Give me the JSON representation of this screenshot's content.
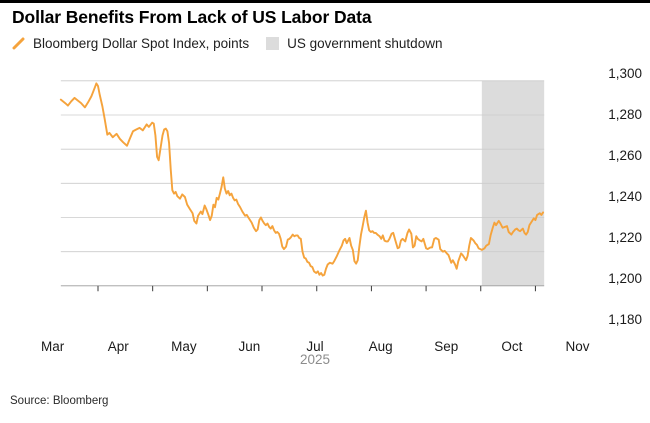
{
  "header": {
    "title": "Dollar Benefits From Lack of US Labor Data"
  },
  "legend": {
    "items": [
      {
        "label": "Bloomberg Dollar Spot Index, points",
        "swatch": "orange-slash",
        "color": "#F5A33C"
      },
      {
        "label": "US government shutdown",
        "swatch": "gray-square",
        "color": "#DCDCDC"
      }
    ]
  },
  "footer": {
    "source": "Source: Bloomberg"
  },
  "chart_data": {
    "type": "line",
    "title": "Dollar Benefits From Lack of US Labor Data",
    "series_name": "Bloomberg Dollar Spot Index, points",
    "x_unit": "fractional month of 2025 (3 = Mar 1, 11 = Nov 1)",
    "x_range": [
      2.32,
      11.16
    ],
    "y_range": [
      1180,
      1300
    ],
    "x_axis_year": "2025",
    "grid": true,
    "legend_position": "top",
    "line_color": "#F5A33C",
    "band_color": "#DCDCDC",
    "grid_color": "#CBCBCB",
    "axis_color": "#9B9B9B",
    "tick_color": "#3A3A3A",
    "x_ticks": [
      {
        "m": 3,
        "label": "Mar"
      },
      {
        "m": 4,
        "label": "Apr"
      },
      {
        "m": 5,
        "label": "May"
      },
      {
        "m": 6,
        "label": "Jun"
      },
      {
        "m": 7,
        "label": "Jul"
      },
      {
        "m": 8,
        "label": "Aug"
      },
      {
        "m": 9,
        "label": "Sep"
      },
      {
        "m": 10,
        "label": "Oct"
      },
      {
        "m": 11,
        "label": "Nov"
      }
    ],
    "y_ticks": [
      {
        "value": 1300,
        "label": "1,300"
      },
      {
        "value": 1280,
        "label": "1,280"
      },
      {
        "value": 1260,
        "label": "1,260"
      },
      {
        "value": 1240,
        "label": "1,240"
      },
      {
        "value": 1220,
        "label": "1,220"
      },
      {
        "value": 1200,
        "label": "1,200"
      },
      {
        "value": 1180,
        "label": "1,180"
      }
    ],
    "shutdown_band": {
      "label": "US government shutdown",
      "x_start": 10.02,
      "x_end": 11.16
    },
    "points": [
      [
        2.32,
        1289
      ],
      [
        2.4,
        1287
      ],
      [
        2.45,
        1285.5
      ],
      [
        2.51,
        1288
      ],
      [
        2.57,
        1290
      ],
      [
        2.63,
        1288.5
      ],
      [
        2.69,
        1287
      ],
      [
        2.76,
        1284.5
      ],
      [
        2.82,
        1287.5
      ],
      [
        2.88,
        1291
      ],
      [
        2.94,
        1296
      ],
      [
        2.97,
        1298.5
      ],
      [
        3.0,
        1297
      ],
      [
        3.03,
        1292
      ],
      [
        3.08,
        1285
      ],
      [
        3.12,
        1278
      ],
      [
        3.17,
        1268.5
      ],
      [
        3.21,
        1269.5
      ],
      [
        3.27,
        1267
      ],
      [
        3.34,
        1269
      ],
      [
        3.4,
        1266
      ],
      [
        3.46,
        1264
      ],
      [
        3.53,
        1262
      ],
      [
        3.58,
        1266
      ],
      [
        3.64,
        1270.5
      ],
      [
        3.7,
        1271.5
      ],
      [
        3.76,
        1272.5
      ],
      [
        3.82,
        1271
      ],
      [
        3.89,
        1274.5
      ],
      [
        3.93,
        1273
      ],
      [
        3.99,
        1275.5
      ],
      [
        4.02,
        1275
      ],
      [
        4.05,
        1268
      ],
      [
        4.08,
        1255.5
      ],
      [
        4.11,
        1253.5
      ],
      [
        4.15,
        1262
      ],
      [
        4.18,
        1268
      ],
      [
        4.21,
        1271.5
      ],
      [
        4.24,
        1272
      ],
      [
        4.27,
        1270.5
      ],
      [
        4.3,
        1263.5
      ],
      [
        4.33,
        1248
      ],
      [
        4.36,
        1236
      ],
      [
        4.39,
        1234
      ],
      [
        4.42,
        1235
      ],
      [
        4.45,
        1232.5
      ],
      [
        4.5,
        1231
      ],
      [
        4.54,
        1233.5
      ],
      [
        4.59,
        1232
      ],
      [
        4.63,
        1227.5
      ],
      [
        4.68,
        1225
      ],
      [
        4.73,
        1222.5
      ],
      [
        4.76,
        1218
      ],
      [
        4.8,
        1216.5
      ],
      [
        4.83,
        1221
      ],
      [
        4.88,
        1223.5
      ],
      [
        4.91,
        1222
      ],
      [
        4.95,
        1227
      ],
      [
        4.98,
        1225
      ],
      [
        5.02,
        1221.5
      ],
      [
        5.05,
        1218.5
      ],
      [
        5.08,
        1221
      ],
      [
        5.11,
        1227.5
      ],
      [
        5.14,
        1226
      ],
      [
        5.17,
        1231.5
      ],
      [
        5.2,
        1230.5
      ],
      [
        5.23,
        1234
      ],
      [
        5.26,
        1238
      ],
      [
        5.29,
        1243.5
      ],
      [
        5.32,
        1237
      ],
      [
        5.35,
        1234
      ],
      [
        5.38,
        1235.5
      ],
      [
        5.41,
        1233
      ],
      [
        5.44,
        1234
      ],
      [
        5.47,
        1231.5
      ],
      [
        5.5,
        1230
      ],
      [
        5.53,
        1230.5
      ],
      [
        5.56,
        1228
      ],
      [
        5.6,
        1226
      ],
      [
        5.64,
        1223.5
      ],
      [
        5.69,
        1221
      ],
      [
        5.72,
        1221.5
      ],
      [
        5.76,
        1219.5
      ],
      [
        5.81,
        1217
      ],
      [
        5.85,
        1214
      ],
      [
        5.89,
        1212
      ],
      [
        5.92,
        1213
      ],
      [
        5.95,
        1218.5
      ],
      [
        5.98,
        1220
      ],
      [
        6.01,
        1218
      ],
      [
        6.04,
        1216.5
      ],
      [
        6.07,
        1215.5
      ],
      [
        6.1,
        1216.5
      ],
      [
        6.13,
        1214.5
      ],
      [
        6.16,
        1213.5
      ],
      [
        6.19,
        1215
      ],
      [
        6.22,
        1212.5
      ],
      [
        6.25,
        1211
      ],
      [
        6.28,
        1211.5
      ],
      [
        6.31,
        1210.5
      ],
      [
        6.34,
        1207.5
      ],
      [
        6.37,
        1203
      ],
      [
        6.4,
        1201.5
      ],
      [
        6.44,
        1203
      ],
      [
        6.47,
        1207
      ],
      [
        6.5,
        1207.5
      ],
      [
        6.53,
        1208.5
      ],
      [
        6.56,
        1210
      ],
      [
        6.59,
        1209
      ],
      [
        6.62,
        1209.5
      ],
      [
        6.65,
        1209.5
      ],
      [
        6.68,
        1208
      ],
      [
        6.71,
        1207.5
      ],
      [
        6.74,
        1200
      ],
      [
        6.77,
        1196.5
      ],
      [
        6.8,
        1196
      ],
      [
        6.83,
        1194
      ],
      [
        6.86,
        1193.5
      ],
      [
        6.89,
        1191.5
      ],
      [
        6.92,
        1191
      ],
      [
        6.95,
        1188.5
      ],
      [
        6.99,
        1187.5
      ],
      [
        7.02,
        1188.5
      ],
      [
        7.05,
        1186.5
      ],
      [
        7.08,
        1187.5
      ],
      [
        7.11,
        1186
      ],
      [
        7.14,
        1186.5
      ],
      [
        7.17,
        1190
      ],
      [
        7.2,
        1192.5
      ],
      [
        7.24,
        1193.5
      ],
      [
        7.29,
        1193
      ],
      [
        7.32,
        1194.5
      ],
      [
        7.37,
        1197.5
      ],
      [
        7.41,
        1200.5
      ],
      [
        7.46,
        1203.5
      ],
      [
        7.49,
        1206.5
      ],
      [
        7.52,
        1207.5
      ],
      [
        7.55,
        1205
      ],
      [
        7.6,
        1208
      ],
      [
        7.63,
        1203.5
      ],
      [
        7.66,
        1201
      ],
      [
        7.69,
        1194.5
      ],
      [
        7.72,
        1193
      ],
      [
        7.75,
        1195
      ],
      [
        7.78,
        1203
      ],
      [
        7.81,
        1210
      ],
      [
        7.84,
        1215
      ],
      [
        7.87,
        1220
      ],
      [
        7.9,
        1224
      ],
      [
        7.93,
        1217
      ],
      [
        7.96,
        1212.5
      ],
      [
        7.99,
        1211.5
      ],
      [
        8.02,
        1212
      ],
      [
        8.05,
        1211
      ],
      [
        8.08,
        1211
      ],
      [
        8.11,
        1210
      ],
      [
        8.15,
        1209
      ],
      [
        8.18,
        1207.5
      ],
      [
        8.21,
        1209.5
      ],
      [
        8.24,
        1206.5
      ],
      [
        8.27,
        1206
      ],
      [
        8.3,
        1206
      ],
      [
        8.33,
        1207.5
      ],
      [
        8.37,
        1210.5
      ],
      [
        8.4,
        1211
      ],
      [
        8.44,
        1206.5
      ],
      [
        8.48,
        1202
      ],
      [
        8.51,
        1202.5
      ],
      [
        8.54,
        1206.5
      ],
      [
        8.57,
        1207.5
      ],
      [
        8.62,
        1206
      ],
      [
        8.66,
        1211
      ],
      [
        8.69,
        1213
      ],
      [
        8.73,
        1210.5
      ],
      [
        8.76,
        1202.5
      ],
      [
        8.79,
        1203.5
      ],
      [
        8.82,
        1209
      ],
      [
        8.85,
        1207.5
      ],
      [
        8.89,
        1206.5
      ],
      [
        8.92,
        1206
      ],
      [
        8.95,
        1207.5
      ],
      [
        9.0,
        1202
      ],
      [
        9.03,
        1201.5
      ],
      [
        9.08,
        1202.5
      ],
      [
        9.11,
        1202.5
      ],
      [
        9.15,
        1207.5
      ],
      [
        9.18,
        1208
      ],
      [
        9.23,
        1207
      ],
      [
        9.26,
        1201.5
      ],
      [
        9.31,
        1200
      ],
      [
        9.34,
        1200.5
      ],
      [
        9.38,
        1199
      ],
      [
        9.41,
        1198
      ],
      [
        9.46,
        1193.5
      ],
      [
        9.49,
        1195
      ],
      [
        9.53,
        1192.5
      ],
      [
        9.56,
        1190
      ],
      [
        9.59,
        1194.5
      ],
      [
        9.64,
        1199
      ],
      [
        9.67,
        1198
      ],
      [
        9.7,
        1196.5
      ],
      [
        9.73,
        1195
      ],
      [
        9.76,
        1197.5
      ],
      [
        9.79,
        1203.5
      ],
      [
        9.82,
        1208
      ],
      [
        9.87,
        1206.5
      ],
      [
        9.9,
        1205
      ],
      [
        9.93,
        1204
      ],
      [
        9.96,
        1202
      ],
      [
        9.99,
        1201.5
      ],
      [
        10.02,
        1201
      ],
      [
        10.07,
        1202
      ],
      [
        10.1,
        1203.5
      ],
      [
        10.15,
        1204.5
      ],
      [
        10.18,
        1209.5
      ],
      [
        10.22,
        1214
      ],
      [
        10.25,
        1217
      ],
      [
        10.28,
        1215.5
      ],
      [
        10.33,
        1218
      ],
      [
        10.36,
        1216.5
      ],
      [
        10.4,
        1214
      ],
      [
        10.44,
        1214.5
      ],
      [
        10.48,
        1215
      ],
      [
        10.51,
        1211.5
      ],
      [
        10.56,
        1210
      ],
      [
        10.59,
        1211.5
      ],
      [
        10.63,
        1213
      ],
      [
        10.66,
        1213.5
      ],
      [
        10.69,
        1212.5
      ],
      [
        10.72,
        1212
      ],
      [
        10.77,
        1213.5
      ],
      [
        10.8,
        1211
      ],
      [
        10.83,
        1210
      ],
      [
        10.86,
        1211.5
      ],
      [
        10.89,
        1215.5
      ],
      [
        10.94,
        1218
      ],
      [
        10.97,
        1219.5
      ],
      [
        11.0,
        1218.5
      ],
      [
        11.03,
        1221.5
      ],
      [
        11.08,
        1222.5
      ],
      [
        11.11,
        1221.5
      ],
      [
        11.14,
        1223
      ]
    ]
  }
}
